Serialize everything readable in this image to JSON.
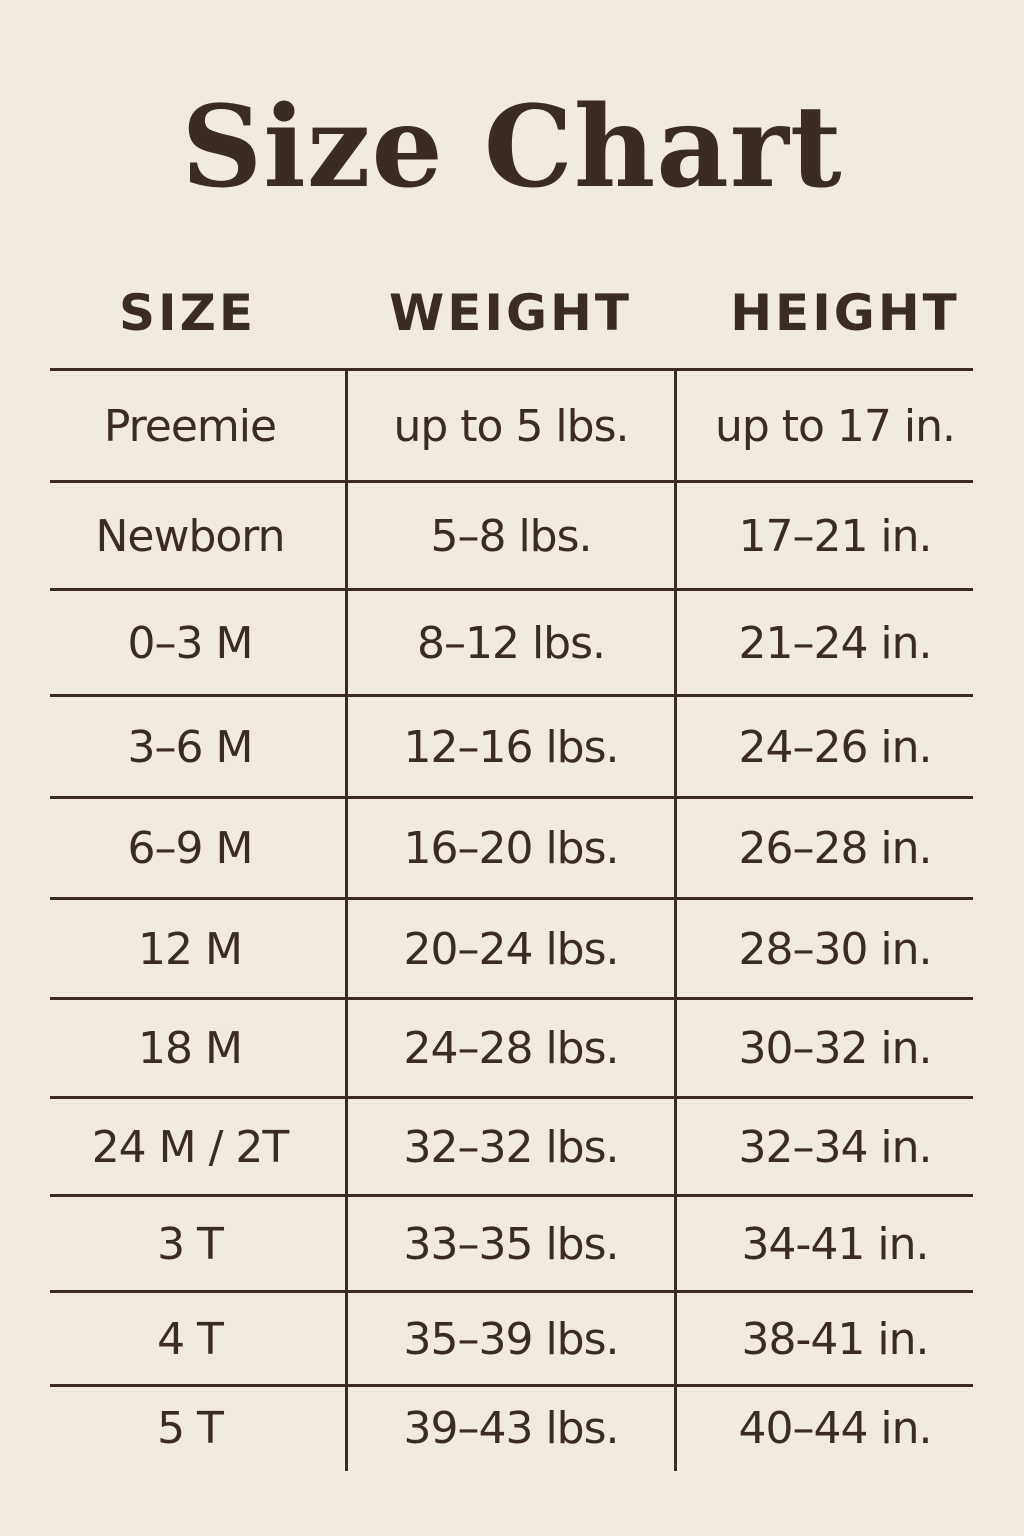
{
  "title": "Size Chart",
  "headers": {
    "size": "SIZE",
    "weight": "WEIGHT",
    "height": "HEIGHT"
  },
  "colors": {
    "background": "#f1eadf",
    "text": "#3a2c22"
  },
  "rows": [
    {
      "size": "Preemie",
      "weight": "up to 5 lbs.",
      "height": "up to 17 in."
    },
    {
      "size": "Newborn",
      "weight": "5–8 lbs.",
      "height": "17–21 in."
    },
    {
      "size": "0–3 M",
      "weight": "8–12 lbs.",
      "height": "21–24 in."
    },
    {
      "size": "3–6 M",
      "weight": "12–16 lbs.",
      "height": "24–26 in."
    },
    {
      "size": "6–9 M",
      "weight": "16–20 lbs.",
      "height": "26–28 in."
    },
    {
      "size": "12 M",
      "weight": "20–24 lbs.",
      "height": "28–30 in."
    },
    {
      "size": "18 M",
      "weight": "24–28 lbs.",
      "height": "30–32 in."
    },
    {
      "size": "24 M / 2T",
      "weight": "32–32 lbs.",
      "height": "32–34 in."
    },
    {
      "size": "3 T",
      "weight": "33–35 lbs.",
      "height": "34-41 in."
    },
    {
      "size": "4 T",
      "weight": "35–39 lbs.",
      "height": "38-41 in."
    },
    {
      "size": "5 T",
      "weight": "39–43 lbs.",
      "height": "40–44 in."
    }
  ]
}
